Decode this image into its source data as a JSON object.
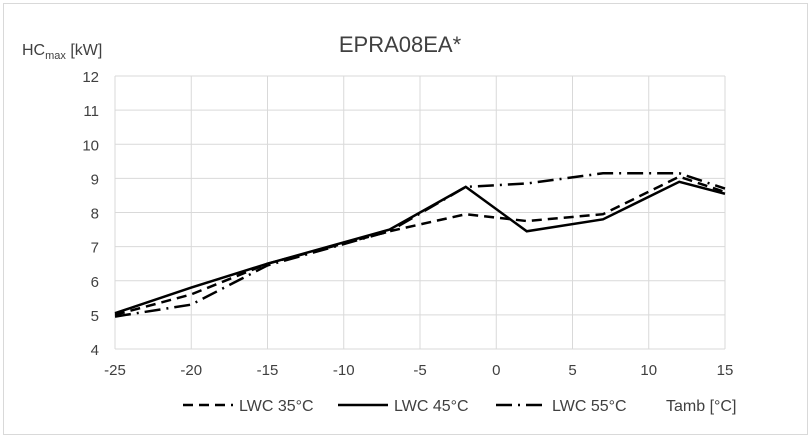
{
  "chart_data": {
    "type": "line",
    "title": "EPRA08EA*",
    "ylabel_main": "HC",
    "ylabel_sub": "max",
    "ylabel_unit": " [kW]",
    "xlabel": "Tamb [°C]",
    "xlim": [
      -25,
      15
    ],
    "ylim": [
      4,
      12
    ],
    "xticks": [
      -25,
      -20,
      -15,
      -10,
      -5,
      0,
      5,
      10,
      15
    ],
    "yticks": [
      4,
      5,
      6,
      7,
      8,
      9,
      10,
      11,
      12
    ],
    "grid": true,
    "legend_position": "bottom",
    "x": [
      -25,
      -20,
      -15,
      -7,
      -2,
      2,
      7,
      12,
      15
    ],
    "series": [
      {
        "name": "LWC 35°C",
        "dash": "dashed",
        "values": [
          5.0,
          5.6,
          6.5,
          7.45,
          7.95,
          7.75,
          7.95,
          9.05,
          8.6
        ]
      },
      {
        "name": "LWC 45°C",
        "dash": "solid",
        "values": [
          5.05,
          5.8,
          6.5,
          7.5,
          8.75,
          7.45,
          7.8,
          8.9,
          8.55
        ]
      },
      {
        "name": "LWC 55°C",
        "dash": "dashdot",
        "values": [
          4.95,
          5.3,
          6.45,
          7.45,
          8.75,
          8.85,
          9.15,
          9.15,
          8.7
        ]
      }
    ]
  }
}
